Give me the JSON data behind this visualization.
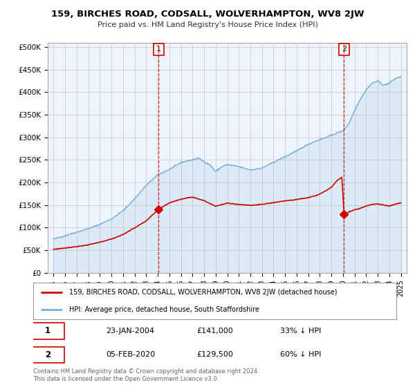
{
  "title": "159, BIRCHES ROAD, CODSALL, WOLVERHAMPTON, WV8 2JW",
  "subtitle": "Price paid vs. HM Land Registry's House Price Index (HPI)",
  "ylabel_ticks": [
    0,
    50000,
    100000,
    150000,
    200000,
    250000,
    300000,
    350000,
    400000,
    450000,
    500000
  ],
  "ylabel_labels": [
    "£0",
    "£50K",
    "£100K",
    "£150K",
    "£200K",
    "£250K",
    "£300K",
    "£350K",
    "£400K",
    "£450K",
    "£500K"
  ],
  "xlim": [
    1994.5,
    2025.5
  ],
  "ylim": [
    0,
    510000
  ],
  "hpi_color": "#7aaddb",
  "hpi_fill_color": "#ddeeff",
  "price_color": "#cc0000",
  "marker1_x": 2004.07,
  "marker2_x": 2020.09,
  "marker1_price": 141000,
  "marker2_price": 129500,
  "legend_entry1": "159, BIRCHES ROAD, CODSALL, WOLVERHAMPTON, WV8 2JW (detached house)",
  "legend_entry2": "HPI: Average price, detached house, South Staffordshire",
  "table_row1_label": "1",
  "table_row1_date": "23-JAN-2004",
  "table_row1_price": "£141,000",
  "table_row1_hpi": "33% ↓ HPI",
  "table_row2_label": "2",
  "table_row2_date": "05-FEB-2020",
  "table_row2_price": "£129,500",
  "table_row2_hpi": "60% ↓ HPI",
  "footer": "Contains HM Land Registry data © Crown copyright and database right 2024.\nThis data is licensed under the Open Government Licence v3.0.",
  "bg_color": "#ffffff",
  "grid_color": "#cccccc"
}
